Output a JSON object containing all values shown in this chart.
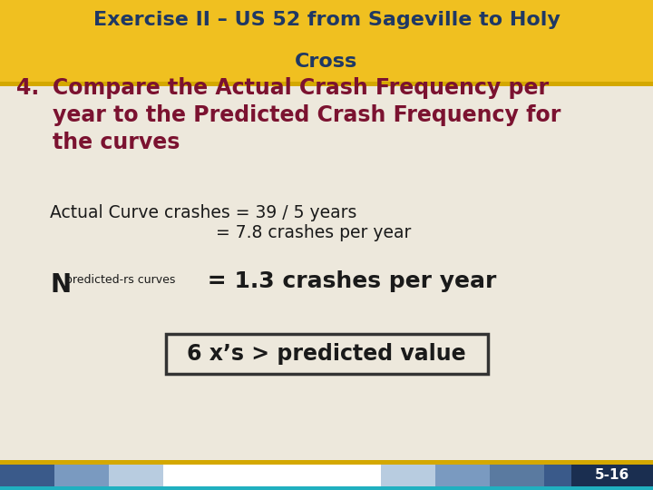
{
  "title_line1": "Exercise II – US 52 from Sageville to Holy",
  "title_line2": "Cross",
  "title_bg_color": "#F0C020",
  "title_text_color": "#1F3864",
  "body_bg_color": "#EDE8DC",
  "footer_text": "5-16",
  "item_number": "4.",
  "item_text_line1": "Compare the Actual Crash Frequency per",
  "item_text_line2": "year to the Predicted Crash Frequency for",
  "item_text_line3": "the curves",
  "item_text_color": "#7B1230",
  "body_text_color": "#1A1A1A",
  "actual_line1": "Actual Curve crashes = 39 / 5 years",
  "actual_line2": "= 7.8 crashes per year",
  "npred_N": "N",
  "npred_sub": "predicted-rs curves",
  "npred_main": " = 1.3 crashes per year",
  "boxed_text": "6 x’s > predicted value",
  "box_border_color": "#333333",
  "box_bg_color": "#EDE8DC",
  "gold_line_color": "#D4A800",
  "footer_colors": [
    "#3A5A8A",
    "#7A9AC0",
    "#B8CCE0",
    "#FFFFFF",
    "#FFFFFF",
    "#FFFFFF",
    "#FFFFFF",
    "#B8CCE0",
    "#7A9AC0",
    "#5A7AA0",
    "#3A5A8A",
    "#1A2E50"
  ],
  "footer_teal_color": "#20B0C0",
  "slide_num_bg": "#1A2E50"
}
